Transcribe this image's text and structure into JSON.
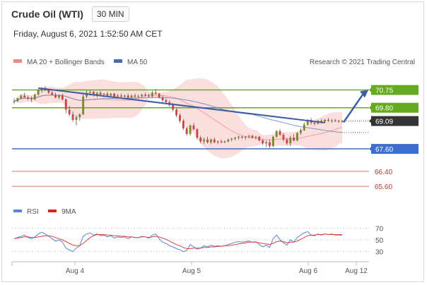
{
  "header": {
    "title": "Crude Oil (WTI)",
    "timeframe": "30 MIN",
    "datetime": "Friday, August 6, 2021 1:52:50 AM CET"
  },
  "credit": "Research © 2021 Trading Central",
  "colors": {
    "resistance": "#66aa22",
    "support": "#3a6fcf",
    "target": "#e07070",
    "candle_up": "#7a8c2a",
    "candle_down": "#d14444",
    "bollinger": "#f7c3c3",
    "ma20": "#f0a0a0",
    "ma50": "#5f7fb8",
    "trend": "#3d5ca6",
    "price_badge": "#333333",
    "rsi": "#5b84d6",
    "rsi_ma": "#e04040"
  },
  "chart_data": [
    {
      "type": "candlestick",
      "x": {
        "ticks": [
          "Aug 4",
          "Aug 5",
          "Aug 6",
          "Aug 12"
        ]
      },
      "y": {
        "range": [
          65.0,
          71.6
        ]
      },
      "legend": [
        {
          "name": "MA 20 + Bollinger Bands",
          "color": "#f08888"
        },
        {
          "name": "MA 50",
          "color": "#4b6aa8"
        }
      ],
      "levels": [
        {
          "label": "70.75",
          "value": 70.75,
          "kind": "resistance"
        },
        {
          "label": "69.80",
          "value": 69.8,
          "kind": "resistance"
        },
        {
          "label": "69.09",
          "value": 69.09,
          "kind": "price"
        },
        {
          "label": "67.60",
          "value": 67.6,
          "kind": "support"
        },
        {
          "label": "66.40",
          "value": 66.4,
          "kind": "target"
        },
        {
          "label": "65.60",
          "value": 65.6,
          "kind": "target"
        }
      ],
      "ohlc": [
        [
          70.1,
          70.3,
          70.0,
          70.15
        ],
        [
          70.15,
          70.35,
          70.1,
          70.3
        ],
        [
          70.3,
          70.5,
          70.25,
          70.45
        ],
        [
          70.45,
          70.6,
          70.4,
          70.35
        ],
        [
          70.35,
          70.45,
          70.2,
          70.3
        ],
        [
          70.3,
          70.4,
          70.1,
          70.25
        ],
        [
          70.25,
          70.55,
          70.2,
          70.5
        ],
        [
          70.5,
          70.8,
          70.45,
          70.75
        ],
        [
          70.75,
          70.9,
          70.6,
          70.85
        ],
        [
          70.85,
          70.95,
          70.7,
          70.75
        ],
        [
          70.75,
          70.8,
          70.55,
          70.6
        ],
        [
          70.6,
          70.7,
          70.45,
          70.5
        ],
        [
          70.5,
          70.6,
          70.3,
          70.35
        ],
        [
          70.35,
          70.5,
          70.25,
          70.45
        ],
        [
          70.45,
          70.55,
          70.2,
          70.25
        ],
        [
          70.25,
          70.3,
          69.5,
          69.7
        ],
        [
          69.7,
          69.9,
          69.35,
          69.45
        ],
        [
          69.45,
          69.6,
          69.05,
          69.15
        ],
        [
          69.15,
          69.4,
          68.85,
          69.3
        ],
        [
          69.3,
          69.5,
          69.1,
          69.45
        ],
        [
          69.45,
          70.6,
          69.4,
          70.4
        ],
        [
          70.4,
          70.75,
          70.3,
          70.6
        ],
        [
          70.6,
          70.75,
          70.45,
          70.65
        ],
        [
          70.65,
          70.7,
          70.4,
          70.5
        ],
        [
          70.5,
          70.65,
          70.35,
          70.6
        ],
        [
          70.6,
          70.7,
          70.45,
          70.5
        ],
        [
          70.5,
          70.6,
          70.35,
          70.55
        ],
        [
          70.55,
          70.65,
          70.4,
          70.45
        ],
        [
          70.45,
          70.6,
          70.35,
          70.55
        ],
        [
          70.55,
          70.6,
          70.35,
          70.4
        ],
        [
          70.4,
          70.55,
          70.3,
          70.45
        ],
        [
          70.45,
          70.55,
          70.35,
          70.4
        ],
        [
          70.4,
          70.5,
          70.3,
          70.45
        ],
        [
          70.45,
          70.55,
          70.3,
          70.35
        ],
        [
          70.35,
          70.5,
          70.25,
          70.45
        ],
        [
          70.45,
          70.55,
          70.3,
          70.4
        ],
        [
          70.4,
          70.5,
          70.3,
          70.42
        ],
        [
          70.42,
          70.55,
          70.35,
          70.5
        ],
        [
          70.5,
          70.6,
          70.4,
          70.45
        ],
        [
          70.45,
          70.55,
          70.35,
          70.4
        ],
        [
          70.4,
          70.7,
          70.35,
          70.6
        ],
        [
          70.6,
          70.8,
          70.5,
          70.55
        ],
        [
          70.55,
          70.6,
          70.3,
          70.35
        ],
        [
          70.35,
          70.45,
          70.1,
          70.2
        ],
        [
          70.2,
          70.3,
          70.0,
          70.1
        ],
        [
          70.1,
          70.2,
          69.85,
          69.95
        ],
        [
          69.95,
          70.05,
          69.6,
          69.7
        ],
        [
          69.7,
          69.8,
          69.3,
          69.4
        ],
        [
          69.4,
          69.5,
          69.0,
          69.1
        ],
        [
          69.1,
          69.2,
          68.6,
          68.7
        ],
        [
          68.7,
          68.8,
          68.3,
          68.4
        ],
        [
          68.4,
          68.9,
          68.3,
          68.85
        ],
        [
          68.85,
          69.0,
          68.6,
          68.65
        ],
        [
          68.65,
          68.7,
          68.1,
          68.2
        ],
        [
          68.2,
          68.3,
          67.9,
          68.0
        ],
        [
          68.0,
          68.2,
          67.85,
          68.1
        ],
        [
          68.1,
          68.25,
          67.9,
          67.95
        ],
        [
          67.95,
          68.15,
          67.85,
          68.1
        ],
        [
          68.1,
          68.2,
          67.9,
          67.95
        ],
        [
          67.95,
          68.05,
          67.85,
          68.0
        ],
        [
          68.0,
          68.1,
          67.9,
          67.95
        ],
        [
          67.95,
          68.05,
          67.9,
          68.0
        ],
        [
          68.0,
          68.15,
          67.95,
          68.1
        ],
        [
          68.1,
          68.2,
          68.0,
          68.15
        ],
        [
          68.15,
          68.25,
          68.05,
          68.2
        ],
        [
          68.2,
          68.3,
          68.1,
          68.25
        ],
        [
          68.25,
          68.3,
          68.15,
          68.2
        ],
        [
          68.2,
          68.3,
          68.1,
          68.25
        ],
        [
          68.25,
          68.35,
          68.15,
          68.3
        ],
        [
          68.3,
          68.35,
          68.15,
          68.2
        ],
        [
          68.2,
          68.3,
          68.1,
          68.25
        ],
        [
          68.25,
          68.3,
          68.0,
          68.05
        ],
        [
          68.05,
          68.15,
          67.8,
          67.9
        ],
        [
          67.9,
          68.05,
          67.7,
          67.95
        ],
        [
          67.95,
          68.1,
          67.65,
          67.75
        ],
        [
          67.75,
          68.3,
          67.7,
          68.25
        ],
        [
          68.25,
          68.6,
          68.2,
          68.55
        ],
        [
          68.55,
          68.65,
          68.3,
          68.35
        ],
        [
          68.35,
          68.45,
          68.0,
          68.1
        ],
        [
          68.1,
          68.2,
          67.8,
          67.9
        ],
        [
          67.9,
          68.3,
          67.75,
          68.2
        ],
        [
          68.2,
          68.4,
          68.0,
          68.05
        ],
        [
          68.05,
          68.5,
          68.0,
          68.45
        ],
        [
          68.45,
          68.7,
          68.35,
          68.6
        ],
        [
          68.6,
          69.0,
          68.55,
          68.9
        ],
        [
          68.9,
          69.2,
          68.85,
          69.15
        ],
        [
          69.15,
          69.25,
          68.9,
          69.0
        ],
        [
          69.0,
          69.1,
          68.85,
          68.95
        ],
        [
          68.95,
          69.15,
          68.9,
          69.1
        ],
        [
          69.1,
          69.2,
          68.95,
          69.05
        ],
        [
          69.05,
          69.2,
          69.0,
          69.15
        ],
        [
          69.15,
          69.25,
          69.05,
          69.1
        ],
        [
          69.1,
          69.2,
          69.0,
          69.12
        ],
        [
          69.12,
          69.2,
          69.05,
          69.1
        ],
        [
          69.1,
          69.15,
          69.0,
          69.08
        ],
        [
          69.08,
          69.15,
          69.0,
          69.09
        ]
      ]
    },
    {
      "type": "line",
      "legend": [
        {
          "name": "RSI",
          "color": "#5b84d6"
        },
        {
          "name": "9MA",
          "color": "#e02020"
        }
      ],
      "y": {
        "ticks": [
          70,
          50,
          30
        ],
        "range": [
          20,
          80
        ]
      },
      "rsi": [
        52,
        54,
        56,
        58,
        54,
        52,
        55,
        60,
        63,
        60,
        56,
        52,
        48,
        50,
        46,
        36,
        33,
        30,
        36,
        40,
        56,
        60,
        62,
        58,
        60,
        57,
        58,
        55,
        57,
        53,
        55,
        54,
        55,
        52,
        55,
        54,
        54,
        56,
        55,
        53,
        58,
        60,
        52,
        46,
        44,
        40,
        38,
        35,
        33,
        30,
        32,
        42,
        38,
        34,
        36,
        40,
        38,
        41,
        39,
        40,
        39,
        40,
        42,
        44,
        46,
        47,
        46,
        47,
        48,
        46,
        47,
        42,
        38,
        41,
        37,
        52,
        58,
        50,
        45,
        41,
        50,
        46,
        54,
        58,
        62,
        64,
        58,
        57,
        60,
        58,
        60,
        59,
        60,
        58,
        58,
        58
      ],
      "rsi_ma": [
        52,
        53,
        54,
        55,
        55,
        54,
        54,
        55,
        56,
        57,
        57,
        56,
        54,
        52,
        50,
        47,
        44,
        41,
        40,
        40,
        44,
        49,
        54,
        57,
        59,
        59,
        59,
        58,
        58,
        57,
        57,
        56,
        56,
        55,
        55,
        54,
        54,
        55,
        55,
        54,
        55,
        56,
        55,
        53,
        51,
        48,
        45,
        42,
        40,
        37,
        35,
        35,
        36,
        36,
        36,
        37,
        37,
        38,
        38,
        39,
        39,
        40,
        40,
        41,
        42,
        43,
        44,
        45,
        46,
        46,
        46,
        45,
        44,
        43,
        42,
        44,
        47,
        48,
        47,
        45,
        46,
        46,
        48,
        51,
        54,
        57,
        58,
        58,
        59,
        59,
        60,
        59,
        59,
        59,
        59,
        59
      ]
    }
  ]
}
